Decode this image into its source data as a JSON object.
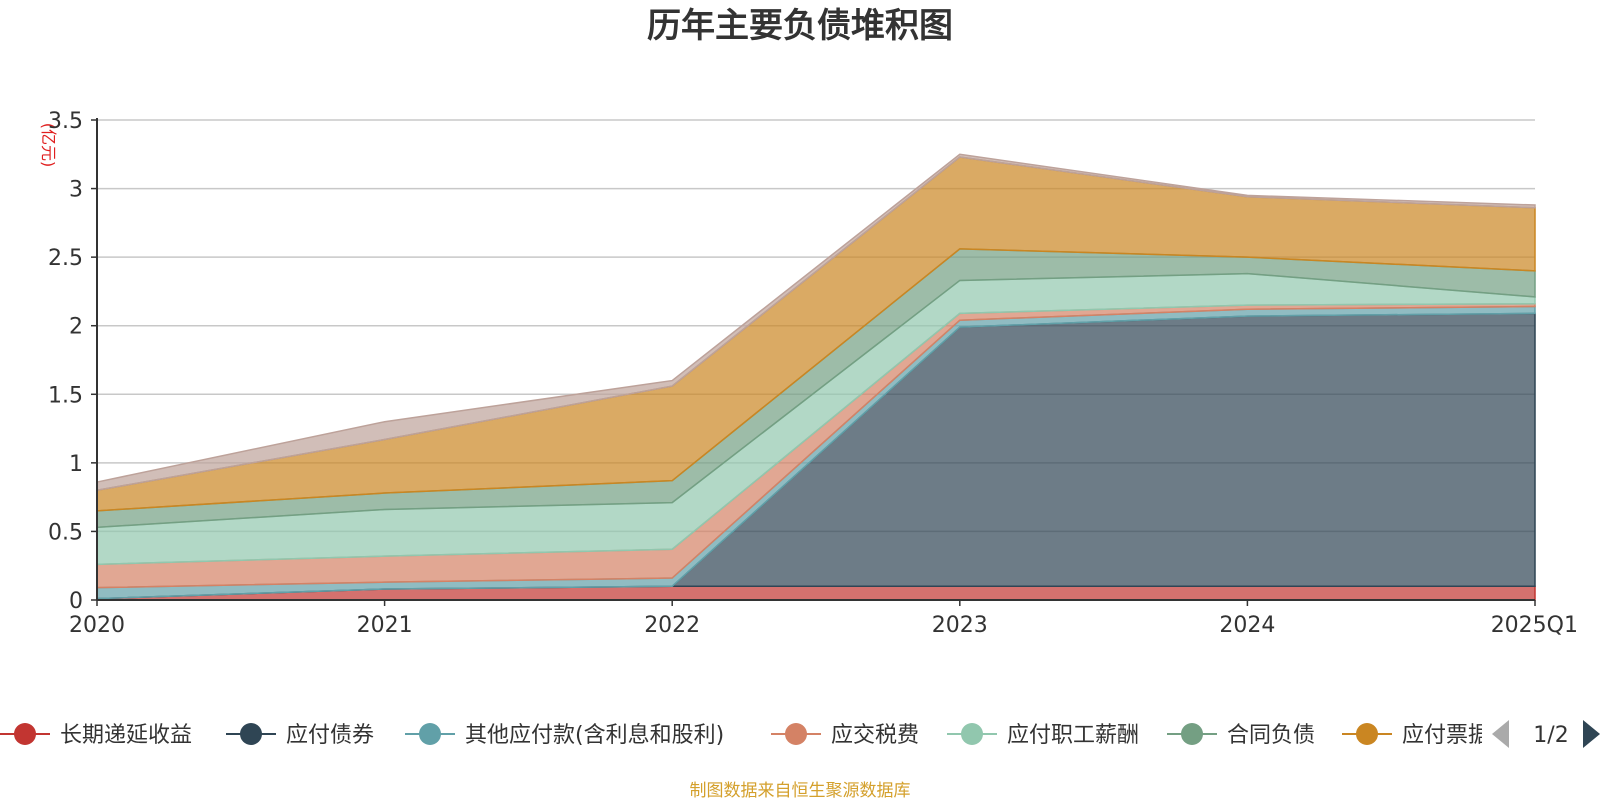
{
  "chart_data": {
    "type": "area",
    "title": "历年主要负债堆积图",
    "unit_label": "(亿元)",
    "x": [
      "2020",
      "2021",
      "2022",
      "2023",
      "2024",
      "2025Q1"
    ],
    "y_ticks": [
      "0",
      "0.5",
      "1",
      "1.5",
      "2",
      "2.5",
      "3",
      "3.5"
    ],
    "ylim": [
      0,
      3.5
    ],
    "grid": true,
    "stacked": true,
    "series": [
      {
        "name": "长期递延收益",
        "color": "#c23531",
        "values": [
          0.01,
          0.08,
          0.1,
          0.1,
          0.1,
          0.1
        ]
      },
      {
        "name": "应付债券",
        "color": "#2f4554",
        "values": [
          0.0,
          0.0,
          0.0,
          1.89,
          1.97,
          1.99
        ]
      },
      {
        "name": "其他应付款(含利息和股利)",
        "color": "#61a0a8",
        "values": [
          0.08,
          0.05,
          0.06,
          0.05,
          0.05,
          0.05
        ]
      },
      {
        "name": "应交税费",
        "color": "#d48265",
        "values": [
          0.17,
          0.19,
          0.21,
          0.05,
          0.03,
          0.02
        ]
      },
      {
        "name": "应付职工薪酬",
        "color": "#91c7ae",
        "values": [
          0.27,
          0.34,
          0.34,
          0.24,
          0.23,
          0.05
        ]
      },
      {
        "name": "合同负债",
        "color": "#749f83",
        "values": [
          0.12,
          0.12,
          0.16,
          0.23,
          0.12,
          0.19
        ]
      },
      {
        "name": "应付票据",
        "color": "#ca8622",
        "values": [
          0.15,
          0.39,
          0.69,
          0.67,
          0.44,
          0.46
        ]
      },
      {
        "name": "",
        "color": "#bda29a",
        "values": [
          0.06,
          0.13,
          0.04,
          0.02,
          0.01,
          0.02
        ]
      }
    ],
    "legend_position": "bottom"
  },
  "legend": {
    "page_indicator": "1/2",
    "visible_items": [
      "长期递延收益",
      "应付债券",
      "其他应付款(含利息和股利)",
      "应交税费",
      "应付职工薪酬",
      "合同负债",
      "应付票据"
    ]
  },
  "footer": {
    "source": "制图数据来自恒生聚源数据库"
  }
}
